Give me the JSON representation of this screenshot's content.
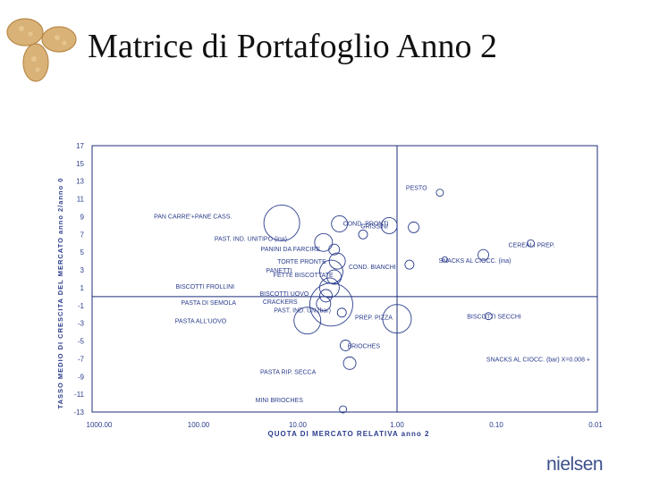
{
  "title": "Matrice di Portafoglio Anno 2",
  "brand": {
    "name": "nielsen",
    "tagline": ""
  },
  "colors": {
    "marks": "#2b3d8c",
    "axes": "#1f2d7a",
    "text": "#2b3d8c"
  },
  "chart_data": {
    "type": "scatter",
    "title": "",
    "xlabel": "QUOTA DI MERCATO RELATIVA anno 2",
    "ylabel": "TASSO MEDIO DI CRESCITA DEL MERCATO anno 2/anno 0",
    "x_scale": "log-reversed",
    "xlim": [
      1000,
      0.01
    ],
    "ylim": [
      -13,
      17
    ],
    "x_ticks": [
      "1000.00",
      "100.00",
      "10.00",
      "1.00",
      "0.10",
      "0.01"
    ],
    "y_ticks": [
      17,
      15,
      13,
      11,
      9,
      7,
      5,
      3,
      1,
      -1,
      -3,
      -5,
      -7,
      -9,
      -11,
      -13
    ],
    "divider_x": 1.0,
    "divider_y": 0,
    "points": [
      {
        "label": "PESTO",
        "x": 0.37,
        "y": 11.7,
        "size": 4
      },
      {
        "label": "PAN CARRE'+PANE CASS.",
        "x": 14.5,
        "y": 8.3,
        "size": 20
      },
      {
        "label": "COND. PRONTI",
        "x": 3.8,
        "y": 8.2,
        "size": 9
      },
      {
        "label": "GRISSINI",
        "x": 1.2,
        "y": 8.0,
        "size": 9
      },
      {
        "label": "",
        "x": 0.68,
        "y": 7.8,
        "size": 6
      },
      {
        "label": "",
        "x": 2.2,
        "y": 7.0,
        "size": 5
      },
      {
        "label": "PAST. IND. UNITIPO (ina)",
        "x": 5.5,
        "y": 6.1,
        "size": 10
      },
      {
        "label": "PANINI DA FARCIRE",
        "x": 4.3,
        "y": 5.3,
        "size": 6
      },
      {
        "label": "CEREALI PREP.",
        "x": 0.045,
        "y": 6.0,
        "size": 4
      },
      {
        "label": "",
        "x": 0.135,
        "y": 4.7,
        "size": 6
      },
      {
        "label": "TORTE PRONTE",
        "x": 4.0,
        "y": 4.0,
        "size": 9
      },
      {
        "label": "SNACKS AL CIOCC. (ina)",
        "x": 0.33,
        "y": 4.2,
        "size": 3
      },
      {
        "label": "COND. BIANCHI",
        "x": 0.75,
        "y": 3.6,
        "size": 5
      },
      {
        "label": "PANETTI",
        "x": 4.6,
        "y": 2.8,
        "size": 13
      },
      {
        "label": "FETTE BISCOTTATE",
        "x": 4.3,
        "y": 2.2,
        "size": 8
      },
      {
        "label": "BISCOTTI FROLLINI",
        "x": 4.8,
        "y": 1.0,
        "size": 11
      },
      {
        "label": "BISCOTTI UOVO",
        "x": 5.2,
        "y": 0.1,
        "size": 7
      },
      {
        "label": "PASTA DI SEMOLA",
        "x": 4.6,
        "y": -0.9,
        "size": 24
      },
      {
        "label": "CRACKERS",
        "x": 5.5,
        "y": -0.8,
        "size": 8
      },
      {
        "label": "PAST. IND. UN.(bar)",
        "x": 3.6,
        "y": -1.8,
        "size": 5
      },
      {
        "label": "PREP. PIZZA",
        "x": 1.0,
        "y": -2.5,
        "size": 16
      },
      {
        "label": "PASTA ALL'UOVO",
        "x": 8.0,
        "y": -2.7,
        "size": 15
      },
      {
        "label": "BISCOTTI SECCHI",
        "x": 0.12,
        "y": -2.2,
        "size": 4
      },
      {
        "label": "BRIOCHES",
        "x": 3.3,
        "y": -5.5,
        "size": 6
      },
      {
        "label": "SNACKS AL CIOCC. (bar) X=0.008 +",
        "x": null,
        "y": -7.0,
        "size": 0
      },
      {
        "label": "PASTA RIP. SECCA",
        "x": 3.0,
        "y": -7.5,
        "size": 7
      },
      {
        "label": "MINI BRIOCHES",
        "x": 3.5,
        "y": -12.7,
        "size": 4
      }
    ]
  }
}
